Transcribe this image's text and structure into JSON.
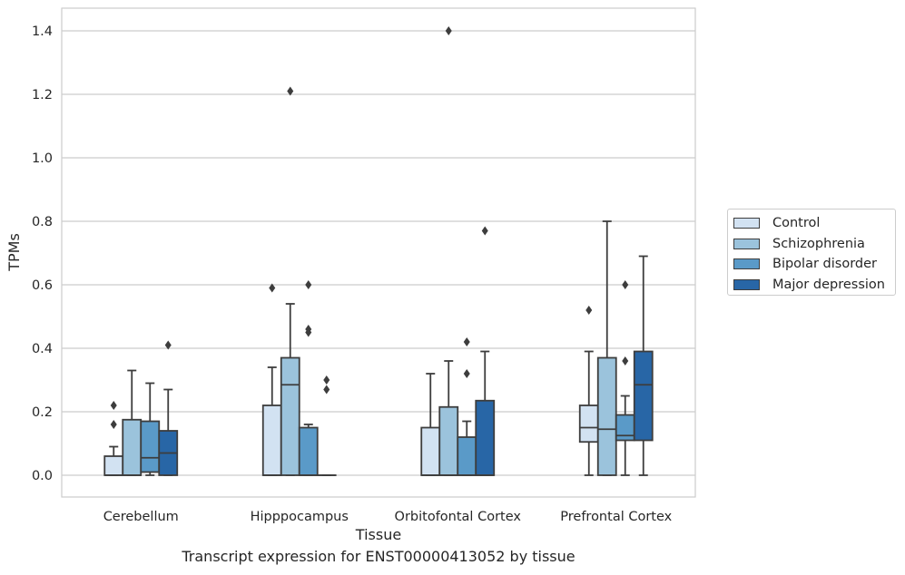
{
  "chart_data": {
    "type": "box",
    "xlabel": "Tissue",
    "ylabel": "TPMs",
    "ylim": [
      -0.07,
      1.47
    ],
    "yticks": [
      0.0,
      0.2,
      0.4,
      0.6,
      0.8,
      1.0,
      1.2,
      1.4
    ],
    "ytick_labels": [
      "0.0",
      "0.2",
      "0.4",
      "0.6",
      "0.8",
      "1.0",
      "1.2",
      "1.4"
    ],
    "categories": [
      "Cerebellum",
      "Hipppocampus",
      "Orbitofontal Cortex",
      "Prefrontal Cortex"
    ],
    "grid": "horizontal",
    "legend_position": "right",
    "series": [
      {
        "name": "Control",
        "color": "#d2e2f2",
        "boxes": [
          {
            "whislo": 0.0,
            "q1": 0.0,
            "median": 0.0,
            "q3": 0.06,
            "whishi": 0.09,
            "fliers": [
              0.16,
              0.22
            ]
          },
          {
            "whislo": 0.0,
            "q1": 0.0,
            "median": 0.0,
            "q3": 0.22,
            "whishi": 0.34,
            "fliers": [
              0.59
            ]
          },
          {
            "whislo": 0.0,
            "q1": 0.0,
            "median": 0.0,
            "q3": 0.15,
            "whishi": 0.32,
            "fliers": []
          },
          {
            "whislo": 0.0,
            "q1": 0.105,
            "median": 0.15,
            "q3": 0.22,
            "whishi": 0.39,
            "fliers": [
              0.52
            ]
          }
        ]
      },
      {
        "name": "Schizophrenia",
        "color": "#9bc3dc",
        "boxes": [
          {
            "whislo": 0.0,
            "q1": 0.0,
            "median": 0.0,
            "q3": 0.175,
            "whishi": 0.33,
            "fliers": []
          },
          {
            "whislo": 0.0,
            "q1": 0.0,
            "median": 0.285,
            "q3": 0.37,
            "whishi": 0.54,
            "fliers": [
              1.21
            ]
          },
          {
            "whislo": 0.0,
            "q1": 0.0,
            "median": 0.0,
            "q3": 0.215,
            "whishi": 0.36,
            "fliers": [
              1.4
            ]
          },
          {
            "whislo": 0.0,
            "q1": 0.0,
            "median": 0.145,
            "q3": 0.37,
            "whishi": 0.8,
            "fliers": []
          }
        ]
      },
      {
        "name": "Bipolar disorder",
        "color": "#5a9ac8",
        "boxes": [
          {
            "whislo": 0.0,
            "q1": 0.01,
            "median": 0.055,
            "q3": 0.17,
            "whishi": 0.29,
            "fliers": []
          },
          {
            "whislo": 0.0,
            "q1": 0.0,
            "median": 0.0,
            "q3": 0.15,
            "whishi": 0.16,
            "fliers": [
              0.45,
              0.46,
              0.6
            ]
          },
          {
            "whislo": 0.0,
            "q1": 0.0,
            "median": 0.0,
            "q3": 0.12,
            "whishi": 0.17,
            "fliers": [
              0.32,
              0.42
            ]
          },
          {
            "whislo": 0.0,
            "q1": 0.11,
            "median": 0.125,
            "q3": 0.19,
            "whishi": 0.25,
            "fliers": [
              0.36,
              0.6
            ]
          }
        ]
      },
      {
        "name": "Major depression",
        "color": "#2866a6",
        "boxes": [
          {
            "whislo": 0.0,
            "q1": 0.0,
            "median": 0.07,
            "q3": 0.14,
            "whishi": 0.27,
            "fliers": [
              0.41
            ]
          },
          {
            "whislo": 0.0,
            "q1": 0.0,
            "median": 0.0,
            "q3": 0.0,
            "whishi": 0.0,
            "fliers": [
              0.27,
              0.3
            ]
          },
          {
            "whislo": 0.0,
            "q1": 0.0,
            "median": 0.0,
            "q3": 0.235,
            "whishi": 0.39,
            "fliers": [
              0.77
            ]
          },
          {
            "whislo": 0.0,
            "q1": 0.11,
            "median": 0.285,
            "q3": 0.39,
            "whishi": 0.69,
            "fliers": []
          }
        ]
      }
    ]
  },
  "caption": "Transcript expression for ENST00000413052 by tissue"
}
